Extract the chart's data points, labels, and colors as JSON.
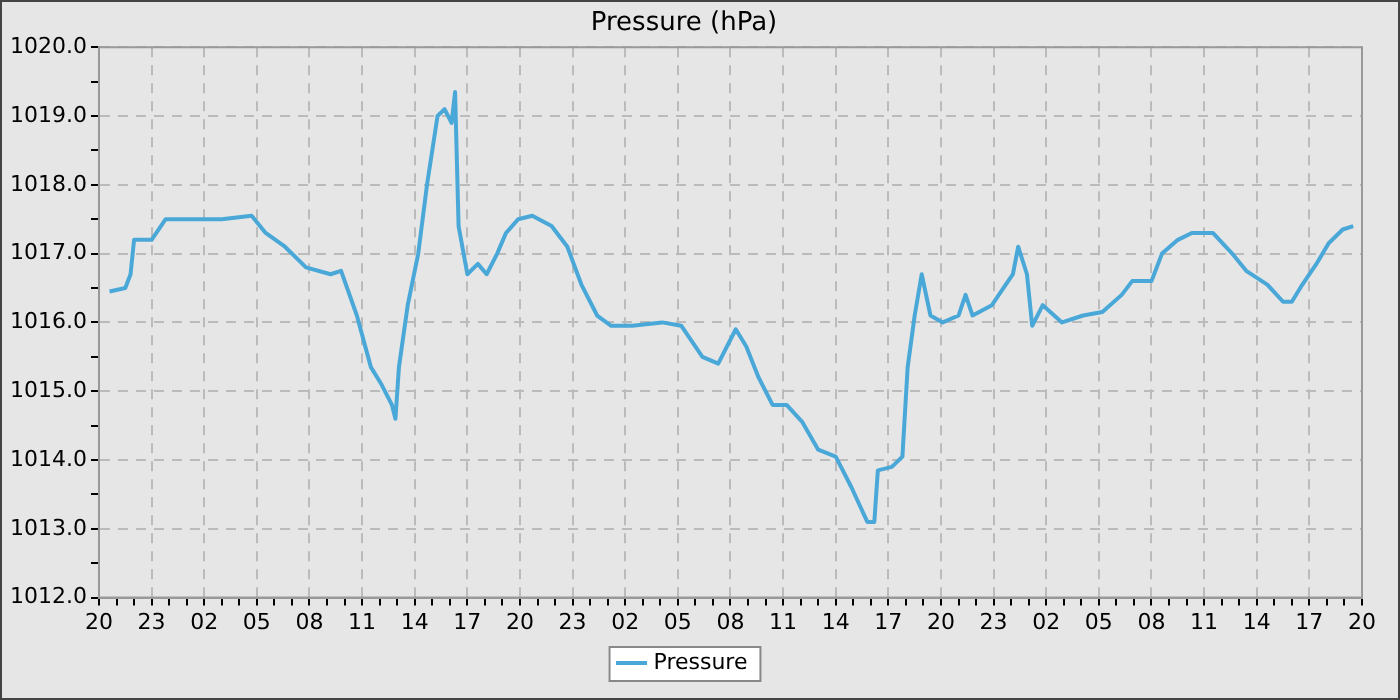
{
  "chart_data": {
    "type": "line",
    "title": "Pressure (hPa)",
    "legend": "bottom",
    "grid": true,
    "marker": "none",
    "line_style": "solid",
    "xlim": [
      "--01-01T20:00",
      "--01-04T20:00"
    ],
    "ylim": [
      1012,
      1020
    ],
    "xticks": [
      {
        "value": "--01-01T20:00",
        "label": "20"
      },
      {
        "value": "--01-01T21:00",
        "label": null
      },
      {
        "value": "--01-01T22:00",
        "label": null
      },
      {
        "value": "--01-01T23:00",
        "label": "23"
      },
      {
        "value": "--01-02T00:00",
        "label": null
      },
      {
        "value": "--01-02T01:00",
        "label": null
      },
      {
        "value": "--01-02T02:00",
        "label": "02"
      },
      {
        "value": "--01-02T03:00",
        "label": null
      },
      {
        "value": "--01-02T04:00",
        "label": null
      },
      {
        "value": "--01-02T05:00",
        "label": "05"
      },
      {
        "value": "--01-02T06:00",
        "label": null
      },
      {
        "value": "--01-02T07:00",
        "label": null
      },
      {
        "value": "--01-02T08:00",
        "label": "08"
      },
      {
        "value": "--01-02T09:00",
        "label": null
      },
      {
        "value": "--01-02T10:00",
        "label": null
      },
      {
        "value": "--01-02T11:00",
        "label": "11"
      },
      {
        "value": "--01-02T12:00",
        "label": null
      },
      {
        "value": "--01-02T13:00",
        "label": null
      },
      {
        "value": "--01-02T14:00",
        "label": "14"
      },
      {
        "value": "--01-02T15:00",
        "label": null
      },
      {
        "value": "--01-02T16:00",
        "label": null
      },
      {
        "value": "--01-02T17:00",
        "label": "17"
      },
      {
        "value": "--01-02T18:00",
        "label": null
      },
      {
        "value": "--01-02T19:00",
        "label": null
      },
      {
        "value": "--01-02T20:00",
        "label": "20"
      },
      {
        "value": "--01-02T21:00",
        "label": null
      },
      {
        "value": "--01-02T22:00",
        "label": null
      },
      {
        "value": "--01-02T23:00",
        "label": "23"
      },
      {
        "value": "--01-03T00:00",
        "label": null
      },
      {
        "value": "--01-03T01:00",
        "label": null
      },
      {
        "value": "--01-03T02:00",
        "label": "02"
      },
      {
        "value": "--01-03T03:00",
        "label": null
      },
      {
        "value": "--01-03T04:00",
        "label": null
      },
      {
        "value": "--01-03T05:00",
        "label": "05"
      },
      {
        "value": "--01-03T06:00",
        "label": null
      },
      {
        "value": "--01-03T07:00",
        "label": null
      },
      {
        "value": "--01-03T08:00",
        "label": "08"
      },
      {
        "value": "--01-03T09:00",
        "label": null
      },
      {
        "value": "--01-03T10:00",
        "label": null
      },
      {
        "value": "--01-03T11:00",
        "label": "11"
      },
      {
        "value": "--01-03T12:00",
        "label": null
      },
      {
        "value": "--01-03T13:00",
        "label": null
      },
      {
        "value": "--01-03T14:00",
        "label": "14"
      },
      {
        "value": "--01-03T15:00",
        "label": null
      },
      {
        "value": "--01-03T16:00",
        "label": null
      },
      {
        "value": "--01-03T17:00",
        "label": "17"
      },
      {
        "value": "--01-03T18:00",
        "label": null
      },
      {
        "value": "--01-03T19:00",
        "label": null
      },
      {
        "value": "--01-03T20:00",
        "label": "20"
      },
      {
        "value": "--01-03T21:00",
        "label": null
      },
      {
        "value": "--01-03T22:00",
        "label": null
      },
      {
        "value": "--01-03T23:00",
        "label": "23"
      },
      {
        "value": "--01-04T00:00",
        "label": null
      },
      {
        "value": "--01-04T01:00",
        "label": null
      },
      {
        "value": "--01-04T02:00",
        "label": "02"
      },
      {
        "value": "--01-04T03:00",
        "label": null
      },
      {
        "value": "--01-04T04:00",
        "label": null
      },
      {
        "value": "--01-04T05:00",
        "label": "05"
      },
      {
        "value": "--01-04T06:00",
        "label": null
      },
      {
        "value": "--01-04T07:00",
        "label": null
      },
      {
        "value": "--01-04T08:00",
        "label": "08"
      },
      {
        "value": "--01-04T09:00",
        "label": null
      },
      {
        "value": "--01-04T10:00",
        "label": null
      },
      {
        "value": "--01-04T11:00",
        "label": "11"
      },
      {
        "value": "--01-04T12:00",
        "label": null
      },
      {
        "value": "--01-04T13:00",
        "label": null
      },
      {
        "value": "--01-04T14:00",
        "label": "14"
      },
      {
        "value": "--01-04T15:00",
        "label": null
      },
      {
        "value": "--01-04T16:00",
        "label": null
      },
      {
        "value": "--01-04T17:00",
        "label": "17"
      },
      {
        "value": "--01-04T18:00",
        "label": null
      },
      {
        "value": "--01-04T19:00",
        "label": null
      },
      {
        "value": "--01-04T20:00",
        "label": "20"
      }
    ],
    "yticks": [
      {
        "value": 1012,
        "label": "1012.0"
      },
      {
        "value": 1012.5,
        "label": null
      },
      {
        "value": 1013,
        "label": "1013.0"
      },
      {
        "value": 1013.5,
        "label": null
      },
      {
        "value": 1014,
        "label": "1014.0"
      },
      {
        "value": 1014.5,
        "label": null
      },
      {
        "value": 1015,
        "label": "1015.0"
      },
      {
        "value": 1015.5,
        "label": null
      },
      {
        "value": 1016,
        "label": "1016.0"
      },
      {
        "value": 1016.5,
        "label": null
      },
      {
        "value": 1017,
        "label": "1017.0"
      },
      {
        "value": 1017.5,
        "label": null
      },
      {
        "value": 1018,
        "label": "1018.0"
      },
      {
        "value": 1018.5,
        "label": null
      },
      {
        "value": 1019,
        "label": "1019.0"
      },
      {
        "value": 1019.5,
        "label": null
      },
      {
        "value": 1020,
        "label": "1020.0"
      }
    ],
    "series": [
      {
        "name": "Pressure",
        "color": "#4aa8d8",
        "x": [
          "--01-01T20:36",
          "--01-01T21:30",
          "--01-01T21:48",
          "--01-01T22:00",
          "--01-01T23:00",
          "--01-01T23:48",
          "--01-02T01:18",
          "--01-02T03:00",
          "--01-02T04:42",
          "--01-02T05:30",
          "--01-02T06:36",
          "--01-02T07:48",
          "--01-02T09:12",
          "--01-02T09:48",
          "--01-02T10:42",
          "--01-02T11:30",
          "--01-02T12:06",
          "--01-02T12:42",
          "--01-02T12:54",
          "--01-02T13:06",
          "--01-02T13:36",
          "--01-02T14:12",
          "--01-02T14:42",
          "--01-02T15:18",
          "--01-02T15:42",
          "--01-02T16:06",
          "--01-02T16:18",
          "--01-02T16:30",
          "--01-02T17:00",
          "--01-02T17:36",
          "--01-02T18:06",
          "--01-02T18:42",
          "--01-02T19:12",
          "--01-02T19:54",
          "--01-02T20:42",
          "--01-02T21:48",
          "--01-02T22:42",
          "--01-02T23:30",
          "--01-03T00:24",
          "--01-03T01:12",
          "--01-03T02:24",
          "--01-03T04:06",
          "--01-03T05:12",
          "--01-03T06:24",
          "--01-03T07:18",
          "--01-03T08:18",
          "--01-03T08:54",
          "--01-03T09:36",
          "--01-03T10:24",
          "--01-03T11:12",
          "--01-03T12:06",
          "--01-03T13:00",
          "--01-03T14:00",
          "--01-03T14:54",
          "--01-03T15:48",
          "--01-03T16:12",
          "--01-03T16:24",
          "--01-03T17:12",
          "--01-03T17:48",
          "--01-03T18:06",
          "--01-03T18:30",
          "--01-03T18:54",
          "--01-03T19:24",
          "--01-03T20:06",
          "--01-03T21:00",
          "--01-03T21:24",
          "--01-03T21:48",
          "--01-03T22:54",
          "--01-04T00:06",
          "--01-04T00:24",
          "--01-04T00:54",
          "--01-04T01:12",
          "--01-04T01:48",
          "--01-04T02:54",
          "--01-04T04:06",
          "--01-04T05:12",
          "--01-04T06:18",
          "--01-04T06:54",
          "--01-04T08:00",
          "--01-04T08:36",
          "--01-04T09:30",
          "--01-04T10:18",
          "--01-04T11:30",
          "--01-04T12:36",
          "--01-04T13:24",
          "--01-04T14:36",
          "--01-04T15:30",
          "--01-04T16:00",
          "--01-04T16:36",
          "--01-04T17:24",
          "--01-04T18:06",
          "--01-04T18:54",
          "--01-04T19:30"
        ],
        "values": [
          1016.45,
          1016.5,
          1016.7,
          1017.2,
          1017.2,
          1017.5,
          1017.5,
          1017.5,
          1017.55,
          1017.3,
          1017.1,
          1016.8,
          1016.7,
          1016.75,
          1016.1,
          1015.35,
          1015.1,
          1014.8,
          1014.6,
          1015.35,
          1016.25,
          1017.0,
          1018.0,
          1019.0,
          1019.1,
          1018.9,
          1019.35,
          1017.4,
          1016.7,
          1016.85,
          1016.7,
          1017.0,
          1017.3,
          1017.5,
          1017.55,
          1017.4,
          1017.1,
          1016.55,
          1016.1,
          1015.95,
          1015.95,
          1016.0,
          1015.95,
          1015.5,
          1015.4,
          1015.9,
          1015.65,
          1015.2,
          1014.8,
          1014.8,
          1014.55,
          1014.15,
          1014.05,
          1013.6,
          1013.1,
          1013.1,
          1013.85,
          1013.9,
          1014.05,
          1015.35,
          1016.1,
          1016.7,
          1016.1,
          1016.0,
          1016.1,
          1016.4,
          1016.1,
          1016.25,
          1016.7,
          1017.1,
          1016.7,
          1015.95,
          1016.25,
          1016.0,
          1016.1,
          1016.15,
          1016.4,
          1016.6,
          1016.6,
          1017.0,
          1017.2,
          1017.3,
          1017.3,
          1017.0,
          1016.75,
          1016.55,
          1016.3,
          1016.3,
          1016.55,
          1016.85,
          1017.15,
          1017.35,
          1017.4
        ]
      }
    ]
  }
}
